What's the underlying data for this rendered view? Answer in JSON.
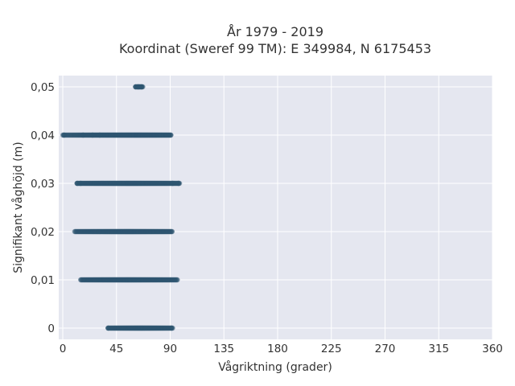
{
  "chart_data": {
    "type": "scatter",
    "title": "År 1979 - 2019",
    "subtitle": "Koordinat (Sweref 99 TM): E 349984, N 6175453",
    "xlabel": "Vågriktning (grader)",
    "ylabel": "Signifikant våghöjd (m)",
    "xlim": [
      0,
      360
    ],
    "ylim": [
      -0.0025,
      0.0525
    ],
    "x_ticks": [
      0,
      45,
      90,
      135,
      180,
      225,
      270,
      315,
      360
    ],
    "x_tick_labels": [
      "0",
      "45",
      "90",
      "135",
      "180",
      "225",
      "270",
      "315",
      "360"
    ],
    "y_ticks": [
      0,
      0.01,
      0.02,
      0.03,
      0.04,
      0.05
    ],
    "y_tick_labels": [
      "0",
      "0,01",
      "0,02",
      "0,03",
      "0,04",
      "0,05"
    ],
    "grid": true,
    "marker_color": "#2e5570",
    "plot_background": "#e5e7f0",
    "series": [
      {
        "clusters": [
          {
            "y": 0.0,
            "x_min": 38,
            "x_max": 92,
            "peak": 65
          },
          {
            "y": 0.01,
            "x_min": 15,
            "x_max": 96,
            "peak": 55
          },
          {
            "y": 0.02,
            "x_min": 10,
            "x_max": 92,
            "peak": 55
          },
          {
            "y": 0.03,
            "x_min": 12,
            "x_max": 98,
            "peak": 55
          },
          {
            "y": 0.04,
            "x_min": 0,
            "x_max": 91,
            "peak": 63
          },
          {
            "y": 0.05,
            "x_min": 61,
            "x_max": 67,
            "peak": 64
          }
        ],
        "points": [
          {
            "x": 1,
            "y": 0.04
          },
          {
            "x": 17,
            "y": 0.04
          },
          {
            "x": 25,
            "y": 0.04
          },
          {
            "x": 31,
            "y": 0.04
          },
          {
            "x": 12,
            "y": 0.03
          },
          {
            "x": 15,
            "y": 0.03
          },
          {
            "x": 97,
            "y": 0.03
          },
          {
            "x": 92,
            "y": 0.03
          },
          {
            "x": 38,
            "y": 0.0
          },
          {
            "x": 91,
            "y": 0.0
          },
          {
            "x": 61,
            "y": 0.05
          },
          {
            "x": 63,
            "y": 0.05
          },
          {
            "x": 66,
            "y": 0.05
          }
        ]
      }
    ]
  }
}
